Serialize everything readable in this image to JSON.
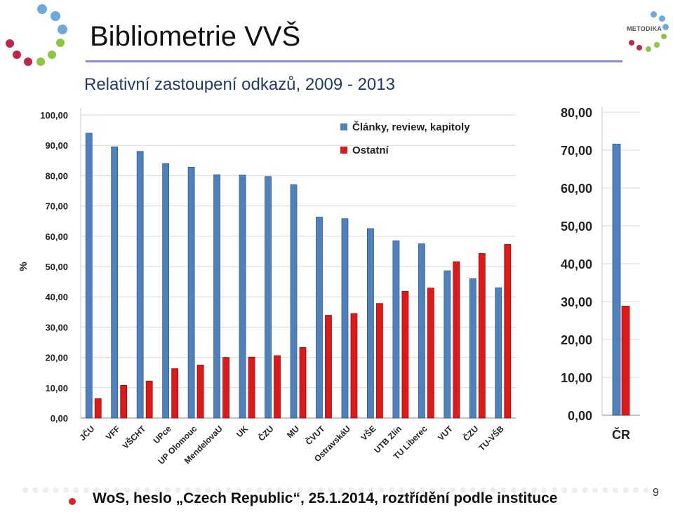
{
  "slide": {
    "title": "Bibliometrie VVŠ",
    "subtitle": "Relativní zastoupení odkazů, 2009 - 2013",
    "footer": "WoS, heslo „Czech Republic“, 25.1.2014, roztřídění podle instituce",
    "page_number": "9",
    "logo_text": "METODIKA"
  },
  "colors": {
    "blue": "#4f81bd",
    "red": "#e01818",
    "logo_blue": "#6fa8dc",
    "logo_red": "#c0264a",
    "logo_green": "#8dc63f"
  },
  "chart_data": [
    {
      "type": "bar",
      "categories": [
        "JČU",
        "VFF",
        "VŠCHT",
        "UPce",
        "UP Olomouc",
        "MendelovaU",
        "UK",
        "ČZU",
        "MU",
        "ČVUT",
        "OstravskáU",
        "VŠE",
        "UTB Zlín",
        "TU Liberec",
        "VUT",
        "ČZU",
        "TU-VŠB"
      ],
      "series": [
        {
          "name": "Články, review, kapitoly",
          "values": [
            94.0,
            89.5,
            88.0,
            84.0,
            82.8,
            80.3,
            80.2,
            79.7,
            77.0,
            66.3,
            65.8,
            62.5,
            58.5,
            57.5,
            48.6,
            46.0,
            43.0
          ]
        },
        {
          "name": "Ostatní",
          "values": [
            6.4,
            10.8,
            12.2,
            16.3,
            17.5,
            20.0,
            20.1,
            20.6,
            23.3,
            33.9,
            34.5,
            37.8,
            41.8,
            42.9,
            51.6,
            54.3,
            57.3
          ]
        }
      ],
      "ylim": [
        0,
        100
      ],
      "yticks": [
        "0,00",
        "10,00",
        "20,00",
        "30,00",
        "40,00",
        "50,00",
        "60,00",
        "70,00",
        "80,00",
        "90,00",
        "100,00"
      ],
      "ylabel": "%",
      "legend": "top-right",
      "grid": true
    },
    {
      "type": "bar",
      "categories": [
        "ČR"
      ],
      "series": [
        {
          "name": "Články, review, kapitoly",
          "values": [
            71.6
          ]
        },
        {
          "name": "Ostatní",
          "values": [
            28.8
          ]
        }
      ],
      "ylim": [
        0,
        80
      ],
      "yticks": [
        "0,00",
        "10,00",
        "20,00",
        "30,00",
        "40,00",
        "50,00",
        "60,00",
        "70,00",
        "80,00"
      ],
      "grid": true
    }
  ]
}
